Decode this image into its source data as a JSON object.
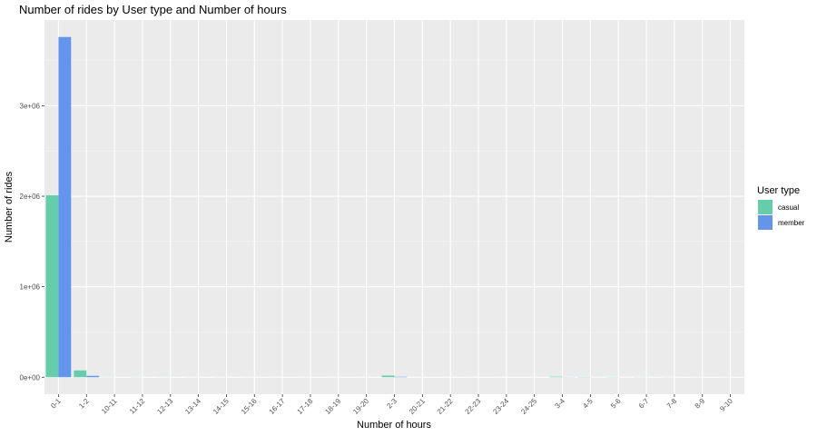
{
  "chart_data": {
    "type": "bar",
    "title": "Number of rides by User type and Number of hours",
    "xlabel": "Number of hours",
    "ylabel": "Number of rides",
    "categories": [
      "0-1",
      "1-2",
      "10-11",
      "11-12",
      "12-13",
      "13-14",
      "14-15",
      "15-16",
      "16-17",
      "17-18",
      "18-19",
      "19-20",
      "2-3",
      "20-21",
      "21-22",
      "22-23",
      "23-24",
      "24-25",
      "3-4",
      "4-5",
      "5-6",
      "6-7",
      "7-8",
      "8-9",
      "9-10"
    ],
    "series": [
      {
        "name": "casual",
        "color": "#66CDAA",
        "values": [
          2010000,
          75000,
          1500,
          1200,
          1000,
          900,
          800,
          700,
          600,
          500,
          500,
          400,
          18000,
          400,
          300,
          300,
          300,
          200,
          6000,
          3000,
          2000,
          1500,
          1200,
          1000,
          800
        ]
      },
      {
        "name": "member",
        "color": "#6495ED",
        "values": [
          3760000,
          15000,
          100,
          100,
          100,
          100,
          100,
          100,
          100,
          100,
          100,
          100,
          5000,
          100,
          100,
          100,
          100,
          100,
          1500,
          600,
          400,
          300,
          200,
          150,
          100
        ]
      }
    ],
    "yticks": [
      {
        "value": 0,
        "label": "0e+00"
      },
      {
        "value": 1000000,
        "label": "1e+06"
      },
      {
        "value": 2000000,
        "label": "2e+06"
      },
      {
        "value": 3000000,
        "label": "3e+06"
      }
    ],
    "ylim": [
      -188000,
      3948000
    ],
    "legend": {
      "title": "User type",
      "position": "right"
    },
    "grid": true,
    "panel_color": "#EBEBEB"
  }
}
